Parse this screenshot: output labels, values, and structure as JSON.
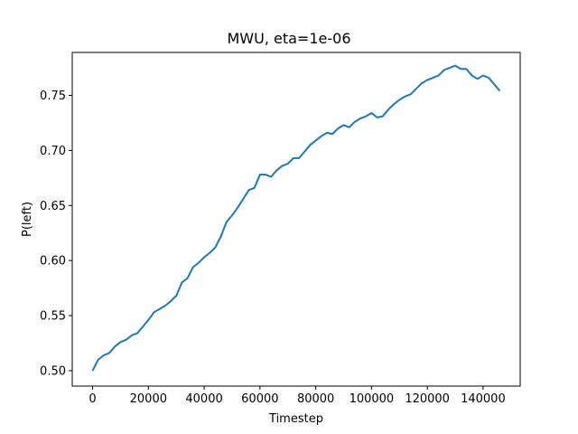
{
  "chart_data": {
    "type": "line",
    "title": "MWU, eta=1e-06",
    "xlabel": "Timestep",
    "ylabel": "P(left)",
    "xlim": [
      -7300,
      153300
    ],
    "ylim": [
      0.486,
      0.789
    ],
    "xticks": [
      0,
      20000,
      40000,
      60000,
      80000,
      100000,
      120000,
      140000
    ],
    "xtick_labels": [
      "0",
      "20000",
      "40000",
      "60000",
      "80000",
      "100000",
      "120000",
      "140000"
    ],
    "yticks": [
      0.5,
      0.55,
      0.6,
      0.65,
      0.7,
      0.75
    ],
    "ytick_labels": [
      "0.50",
      "0.55",
      "0.60",
      "0.65",
      "0.70",
      "0.75"
    ],
    "grid": false,
    "series": [
      {
        "color": "#1f77b4",
        "x": [
          0,
          1000,
          2000,
          4000,
          6000,
          8000,
          10000,
          12000,
          14000,
          16000,
          18000,
          20000,
          22000,
          24000,
          26000,
          28000,
          30000,
          32000,
          34000,
          36000,
          38000,
          40000,
          42000,
          44000,
          46000,
          48000,
          50000,
          52000,
          54000,
          56000,
          58000,
          60000,
          62000,
          64000,
          66000,
          68000,
          70000,
          72000,
          74000,
          76000,
          78000,
          80000,
          82000,
          84000,
          86000,
          88000,
          90000,
          92000,
          94000,
          96000,
          98000,
          100000,
          102000,
          104000,
          106000,
          108000,
          110000,
          112000,
          114000,
          116000,
          118000,
          120000,
          122000,
          124000,
          126000,
          128000,
          130000,
          132000,
          134000,
          136000,
          138000,
          140000,
          142000,
          144000,
          146000
        ],
        "y": [
          0.5,
          0.505,
          0.51,
          0.514,
          0.516,
          0.522,
          0.526,
          0.528,
          0.532,
          0.534,
          0.54,
          0.546,
          0.553,
          0.556,
          0.559,
          0.563,
          0.568,
          0.58,
          0.584,
          0.594,
          0.598,
          0.603,
          0.607,
          0.612,
          0.622,
          0.635,
          0.641,
          0.648,
          0.656,
          0.664,
          0.666,
          0.678,
          0.678,
          0.676,
          0.682,
          0.686,
          0.688,
          0.693,
          0.693,
          0.699,
          0.705,
          0.709,
          0.713,
          0.716,
          0.715,
          0.72,
          0.723,
          0.721,
          0.726,
          0.729,
          0.731,
          0.734,
          0.73,
          0.731,
          0.737,
          0.742,
          0.746,
          0.749,
          0.751,
          0.756,
          0.761,
          0.764,
          0.766,
          0.768,
          0.773,
          0.775,
          0.777,
          0.774,
          0.774,
          0.768,
          0.765,
          0.768,
          0.766,
          0.76,
          0.754
        ]
      }
    ]
  }
}
